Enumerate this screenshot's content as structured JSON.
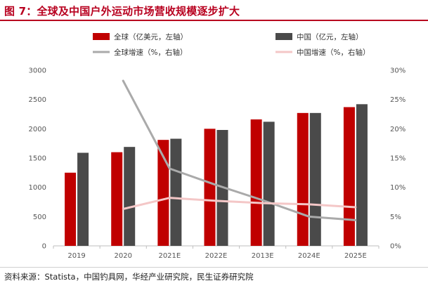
{
  "figure": {
    "title": "图 7：全球及中国户外运动市场营收规模逐步扩大",
    "source": "资料来源：Statista，中国钓具网，华经产业研究院，民生证券研究院"
  },
  "chart_data": {
    "type": "bar",
    "categories": [
      "2019",
      "2020",
      "2021E",
      "2022E",
      "2013E",
      "2024E",
      "2025E"
    ],
    "series": [
      {
        "name": "全球（亿美元，左轴）",
        "type": "bar",
        "axis": "left",
        "color": "#c00000",
        "values": [
          1250,
          1600,
          1810,
          2000,
          2160,
          2270,
          2370
        ]
      },
      {
        "name": "中国（亿元，左轴）",
        "type": "bar",
        "axis": "left",
        "color": "#4a4a4a",
        "values": [
          1590,
          1690,
          1830,
          1980,
          2120,
          2270,
          2420
        ]
      },
      {
        "name": "全球增速（%，右轴）",
        "type": "line",
        "axis": "right",
        "color": "#aaaaaa",
        "values": [
          null,
          28.2,
          13.2,
          10.4,
          7.8,
          5.0,
          4.4
        ]
      },
      {
        "name": "中国增速（%，右轴）",
        "type": "line",
        "axis": "right",
        "color": "#f4c7c7",
        "values": [
          null,
          6.3,
          8.2,
          7.7,
          7.3,
          7.1,
          6.6
        ]
      }
    ],
    "y_left": {
      "min": 0,
      "max": 3000,
      "ticks": [
        "0",
        "500",
        "1000",
        "1500",
        "2000",
        "2500",
        "3000"
      ]
    },
    "y_right": {
      "min": 0,
      "max": 30,
      "ticks": [
        "0%",
        "5%",
        "10%",
        "15%",
        "20%",
        "25%",
        "30%"
      ]
    },
    "grid": false,
    "legend": "top"
  }
}
